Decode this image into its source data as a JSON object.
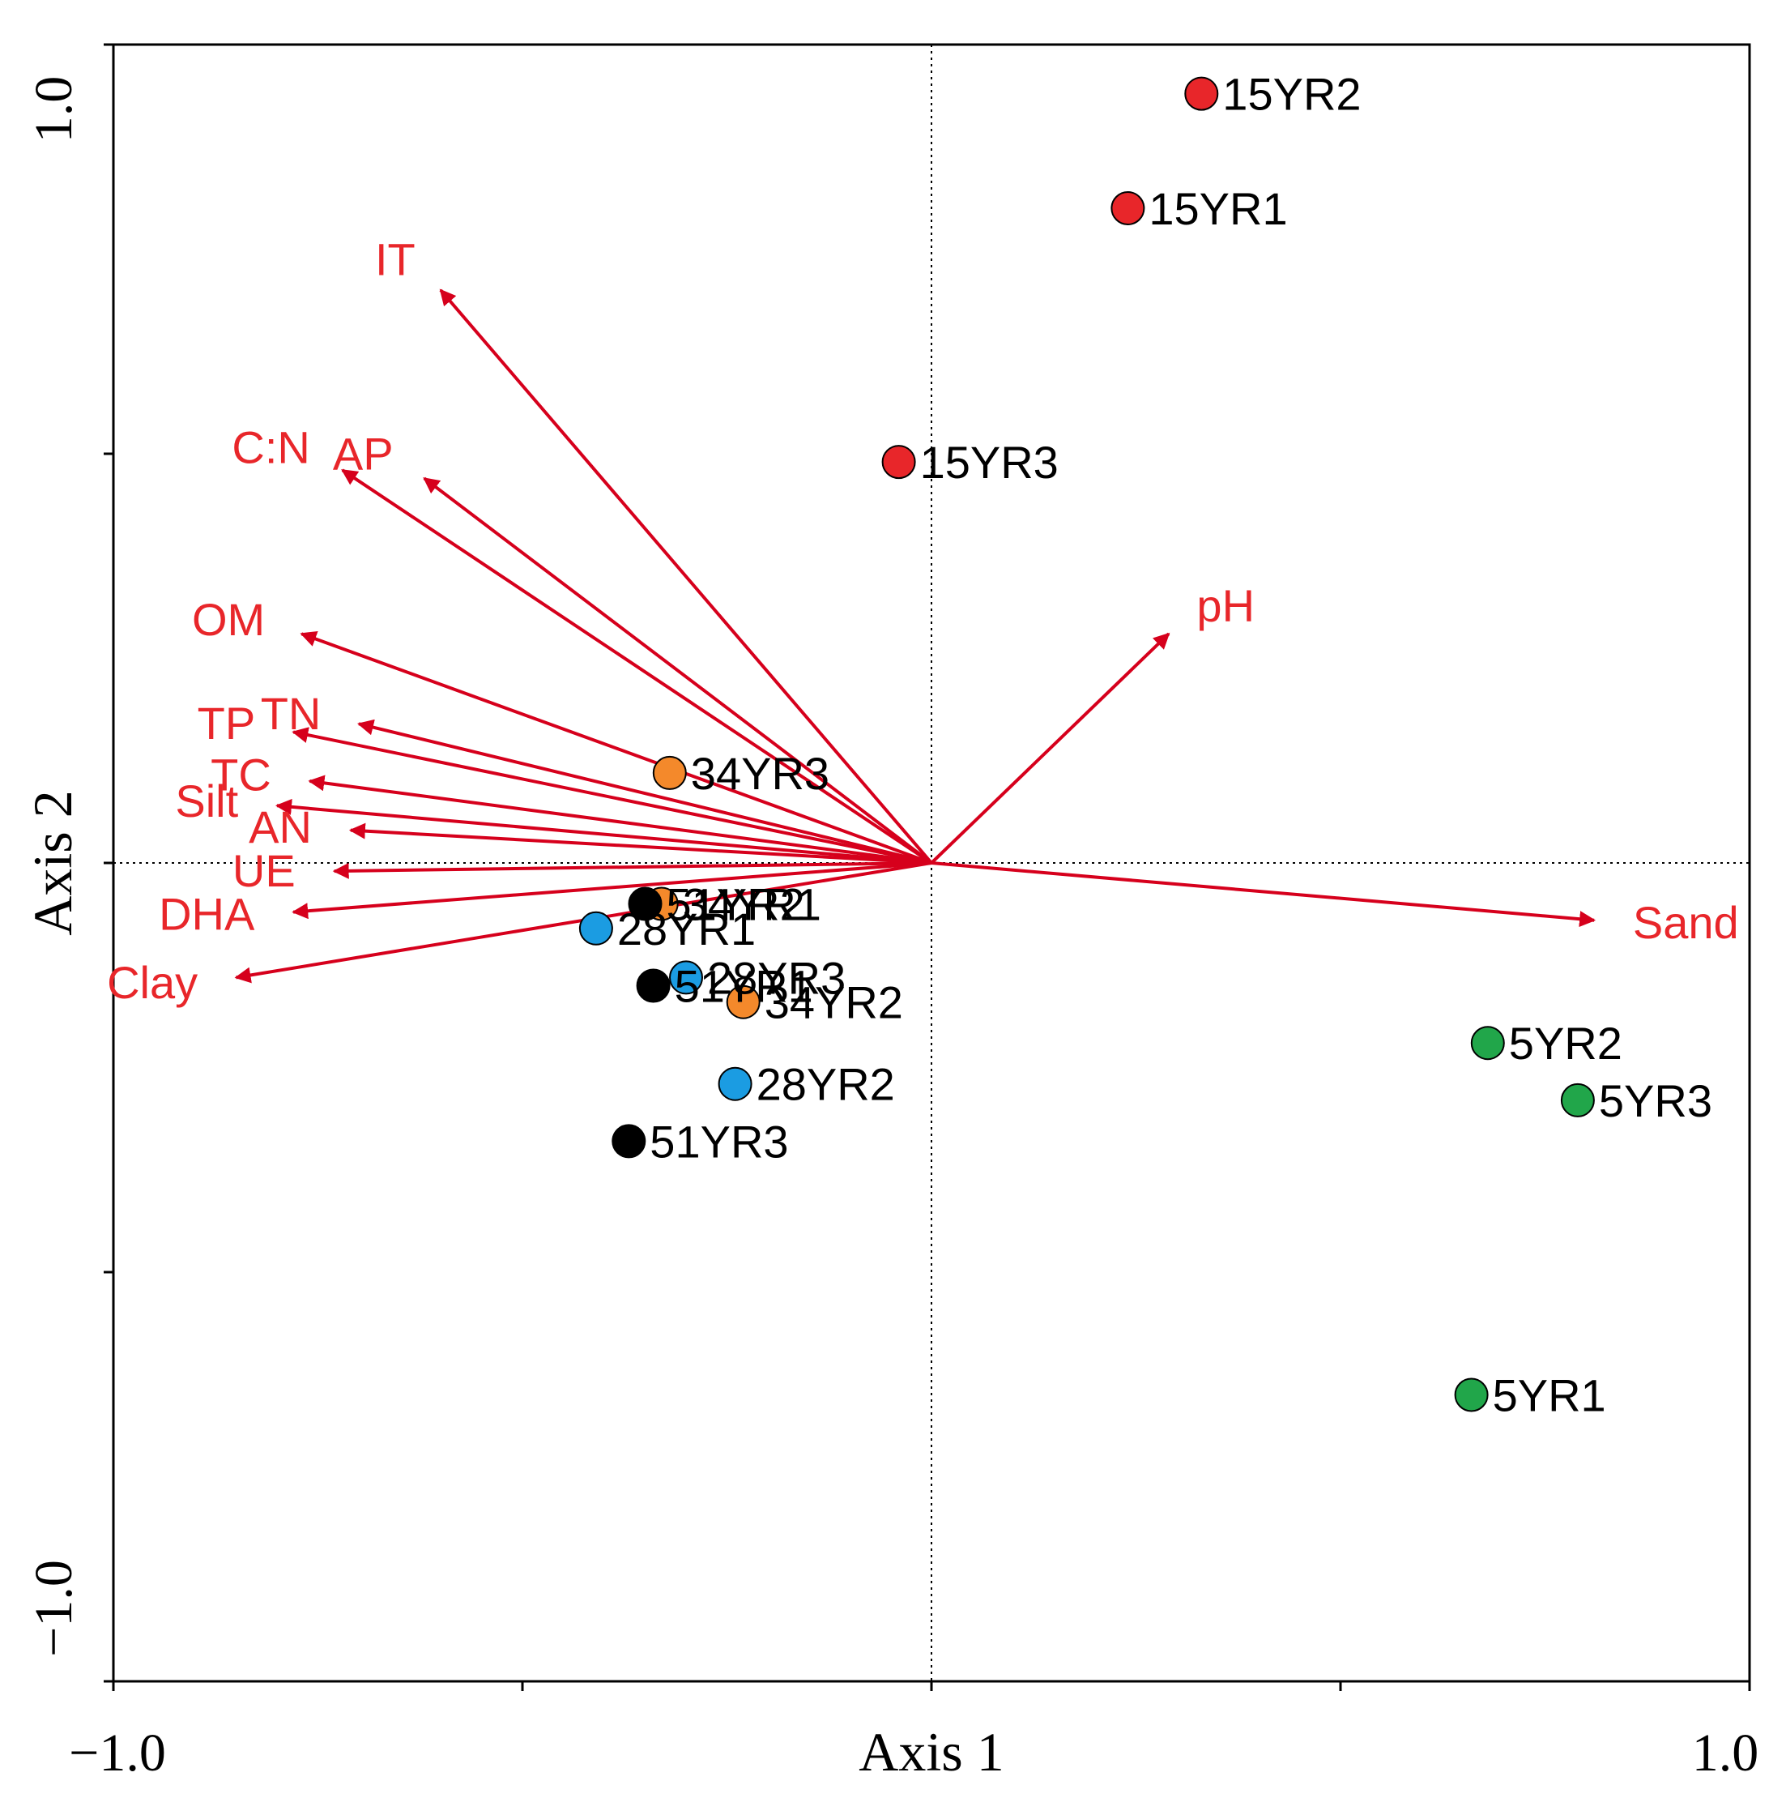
{
  "chart_data": {
    "type": "scatter",
    "subtype": "ordination-biplot",
    "xlabel": "Axis 1",
    "ylabel": "Axis 2",
    "xlim": [
      -1.0,
      1.0
    ],
    "ylim": [
      -1.0,
      1.0
    ],
    "x_tick_labels": [
      "−1.0",
      "1.0"
    ],
    "y_tick_labels": [
      "−1.0",
      "1.0"
    ],
    "zero_lines": true,
    "arrow_color": "#d6001c",
    "environmental_vectors": [
      {
        "name": "IT",
        "x": -0.6,
        "y": 0.7
      },
      {
        "name": "AP",
        "x": -0.62,
        "y": 0.47
      },
      {
        "name": "C:N",
        "x": -0.72,
        "y": 0.48
      },
      {
        "name": "OM",
        "x": -0.77,
        "y": 0.28
      },
      {
        "name": "TN",
        "x": -0.7,
        "y": 0.17
      },
      {
        "name": "TP",
        "x": -0.78,
        "y": 0.16
      },
      {
        "name": "TC",
        "x": -0.76,
        "y": 0.1
      },
      {
        "name": "Silt",
        "x": -0.8,
        "y": 0.07
      },
      {
        "name": "AN",
        "x": -0.71,
        "y": 0.04
      },
      {
        "name": "UE",
        "x": -0.73,
        "y": -0.01
      },
      {
        "name": "DHA",
        "x": -0.78,
        "y": -0.06
      },
      {
        "name": "Clay",
        "x": -0.85,
        "y": -0.14
      },
      {
        "name": "pH",
        "x": 0.29,
        "y": 0.28
      },
      {
        "name": "Sand",
        "x": 0.81,
        "y": -0.07
      }
    ],
    "series": [
      {
        "name": "15YR",
        "color": "#e8262a",
        "points": [
          {
            "label": "15YR1",
            "x": 0.24,
            "y": 0.8
          },
          {
            "label": "15YR2",
            "x": 0.33,
            "y": 0.94
          },
          {
            "label": "15YR3",
            "x": -0.04,
            "y": 0.49
          }
        ]
      },
      {
        "name": "34YR",
        "color": "#f4892b",
        "points": [
          {
            "label": "34YR1",
            "x": -0.33,
            "y": -0.05
          },
          {
            "label": "34YR2",
            "x": -0.23,
            "y": -0.17
          },
          {
            "label": "34YR3",
            "x": -0.32,
            "y": 0.11
          }
        ]
      },
      {
        "name": "28YR",
        "color": "#1b9ce2",
        "points": [
          {
            "label": "28YR1",
            "x": -0.41,
            "y": -0.08
          },
          {
            "label": "28YR2",
            "x": -0.24,
            "y": -0.27
          },
          {
            "label": "28YR3",
            "x": -0.3,
            "y": -0.14
          }
        ]
      },
      {
        "name": "51YR",
        "color": "#000000",
        "points": [
          {
            "label": "51YR1",
            "x": -0.34,
            "y": -0.15
          },
          {
            "label": "51YR2",
            "x": -0.35,
            "y": -0.05
          },
          {
            "label": "51YR3",
            "x": -0.37,
            "y": -0.34
          }
        ]
      },
      {
        "name": "5YR",
        "color": "#21a64a",
        "points": [
          {
            "label": "5YR1",
            "x": 0.66,
            "y": -0.65
          },
          {
            "label": "5YR2",
            "x": 0.68,
            "y": -0.22
          },
          {
            "label": "5YR3",
            "x": 0.79,
            "y": -0.29
          }
        ]
      }
    ]
  }
}
